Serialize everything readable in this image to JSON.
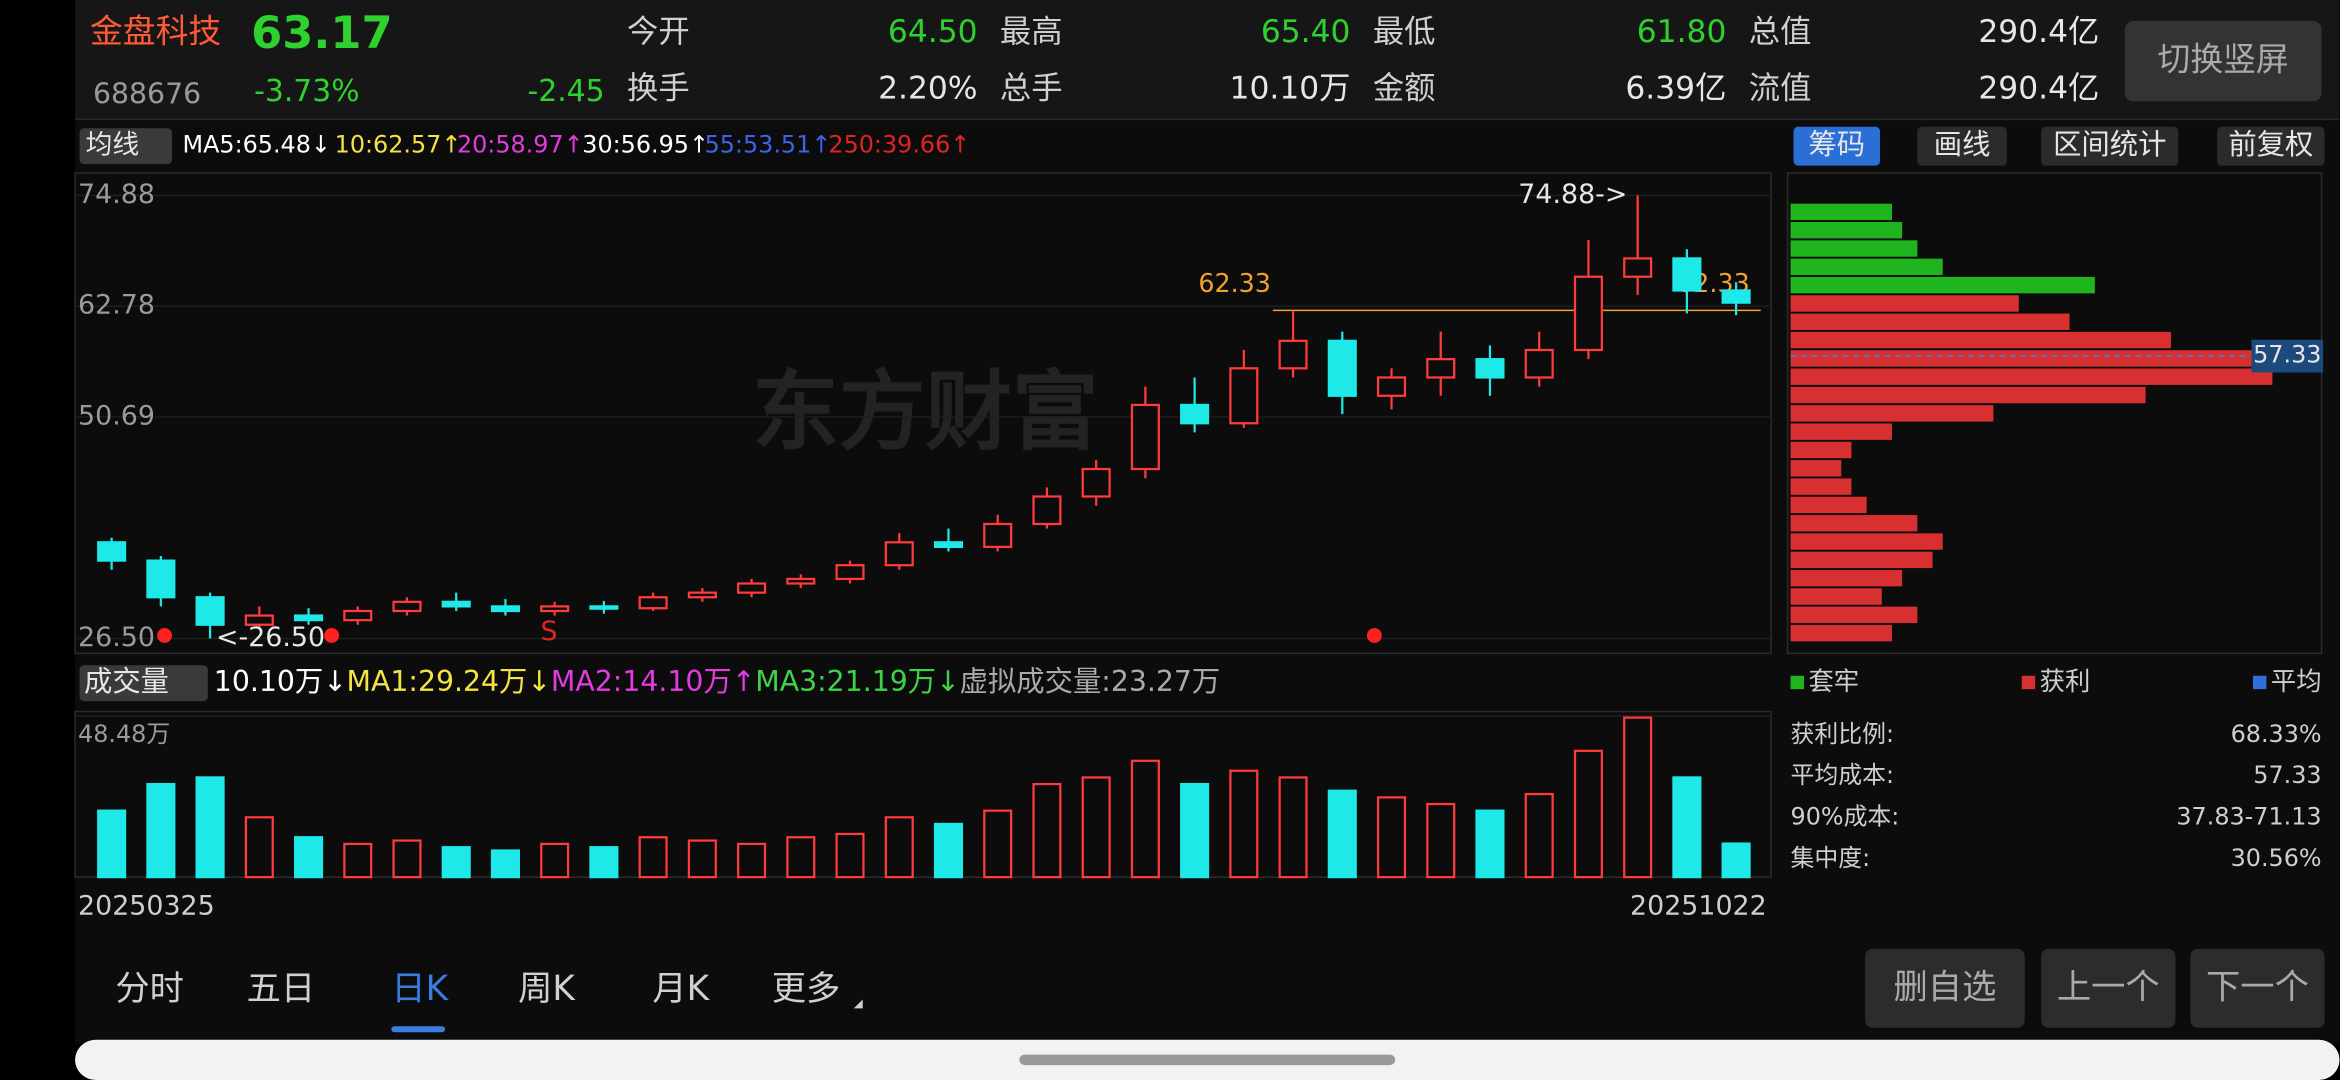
{
  "header": {
    "name": "金盘科技",
    "price": "63.17",
    "code": "688676",
    "change_pct": "-3.73%",
    "change": "-2.45",
    "stats": [
      {
        "label": "今开",
        "value": "64.50"
      },
      {
        "label": "最高",
        "value": "65.40"
      },
      {
        "label": "最低",
        "value": "61.80"
      },
      {
        "label": "总值",
        "value": "290.4亿"
      },
      {
        "label": "换手",
        "value": "2.20%"
      },
      {
        "label": "总手",
        "value": "10.10万"
      },
      {
        "label": "金额",
        "value": "6.39亿"
      },
      {
        "label": "流值",
        "value": "290.4亿"
      }
    ],
    "button": "切换竖屏"
  },
  "ma_bar": {
    "selector": "均线",
    "items": [
      {
        "text": "MA5:65.48↓",
        "color": "#ffffff"
      },
      {
        "text": "10:62.57↑",
        "color": "#f5e342"
      },
      {
        "text": "20:58.97↑",
        "color": "#e23be0"
      },
      {
        "text": "30:56.95↑",
        "color": "#ffffff"
      },
      {
        "text": "55:53.51↑",
        "color": "#3f62e8"
      },
      {
        "text": "250:39.66↑",
        "color": "#e02424"
      }
    ]
  },
  "side_tabs": [
    "筹码",
    "画线",
    "区间统计",
    "前复权"
  ],
  "chart_data": {
    "type": "candlestick",
    "watermark": "东方财富",
    "ylim": [
      26.5,
      74.88
    ],
    "yticks": [
      {
        "value": 26.5,
        "label": "26.50"
      },
      50.69,
      62.78,
      74.88
    ],
    "up_color": "#ff3b3b",
    "down_color": "#1ee8e8",
    "candles": {
      "open": [
        37,
        35,
        31,
        28,
        29,
        28.5,
        29.5,
        30.5,
        30,
        29.5,
        30,
        29.8,
        31,
        31.5,
        32.5,
        33,
        34.5,
        37,
        36.5,
        39,
        42,
        45,
        52,
        50,
        56,
        59,
        53,
        55,
        57,
        55,
        58,
        66,
        68,
        64.5
      ],
      "high": [
        37.5,
        35.5,
        31.5,
        30,
        29.8,
        30,
        31,
        31.5,
        30.8,
        30.5,
        30.6,
        31.5,
        32,
        33,
        33.5,
        35,
        38,
        38.5,
        40,
        43,
        46,
        54,
        55,
        58,
        62.3,
        60,
        56,
        60,
        58.5,
        60,
        70,
        74.88,
        69,
        65.4
      ],
      "low": [
        34,
        30,
        26.5,
        27.5,
        28,
        28,
        29,
        29.5,
        29,
        29,
        29.2,
        29.5,
        30.5,
        31,
        32,
        32.5,
        34,
        36,
        36,
        38.5,
        41,
        44,
        49,
        49.5,
        55,
        51,
        51.5,
        53,
        53,
        54,
        57,
        64,
        62,
        61.8
      ],
      "close": [
        35,
        31,
        28,
        29,
        28.5,
        29.5,
        30.5,
        30,
        29.5,
        30,
        29.8,
        31,
        31.5,
        32.5,
        33,
        34.5,
        37,
        36.5,
        39,
        42,
        45,
        52,
        50,
        56,
        59,
        53,
        55,
        57,
        55,
        58,
        66,
        68,
        64.5,
        63.17
      ]
    },
    "high_label": "74.88->",
    "low_label": "<-26.50",
    "ref_line": 62.33,
    "signal": "S",
    "volume": {
      "title": "成交量",
      "items": [
        {
          "text": "10.10万↓",
          "color": "#ffffff"
        },
        {
          "text": "MA1:29.24万↓",
          "color": "#f5e342"
        },
        {
          "text": "MA2:14.10万↑",
          "color": "#e23be0"
        },
        {
          "text": "MA3:21.19万↓",
          "color": "#3fd24a"
        },
        {
          "text": "虚拟成交量:23.27万",
          "color": "#aaaaaa"
        }
      ],
      "ylim": [
        0,
        48.48
      ],
      "yticks": [
        {
          "value": 48.48,
          "label": "48.48万"
        }
      ],
      "values": [
        20,
        28,
        30,
        18,
        12,
        10,
        11,
        9,
        8,
        10,
        9,
        12,
        11,
        10,
        12,
        13,
        18,
        16,
        20,
        28,
        30,
        35,
        28,
        32,
        30,
        26,
        24,
        22,
        20,
        25,
        38,
        48,
        30,
        10.1
      ]
    },
    "dates": [
      "20250325",
      "20251022"
    ]
  },
  "chips": {
    "legend": [
      {
        "name": "套牢",
        "color": "#1fb51f"
      },
      {
        "name": "获利",
        "color": "#d83030"
      },
      {
        "name": "平均",
        "color": "#2f6fd6"
      }
    ],
    "avg_cost": 57.33,
    "prices": [
      27,
      29,
      31,
      33,
      35,
      37,
      39,
      41,
      43,
      45,
      47,
      49,
      51,
      53,
      55,
      57,
      59,
      61,
      63,
      65,
      67,
      69,
      71,
      73
    ],
    "values": [
      20,
      25,
      18,
      22,
      28,
      30,
      25,
      15,
      12,
      10,
      12,
      20,
      40,
      70,
      95,
      100,
      75,
      55,
      45,
      60,
      30,
      25,
      22,
      20
    ],
    "stats": [
      {
        "label": "获利比例:",
        "value": "68.33%"
      },
      {
        "label": "平均成本:",
        "value": 57.33
      },
      {
        "label": "90%成本:",
        "value": "37.83-71.13"
      },
      {
        "label": "集中度:",
        "value": "30.56%"
      }
    ]
  },
  "nav": {
    "tabs": [
      "分时",
      "五日",
      "日K",
      "周K",
      "月K",
      "更多"
    ],
    "active": 2,
    "buttons": [
      "删自选",
      "上一个",
      "下一个"
    ]
  }
}
